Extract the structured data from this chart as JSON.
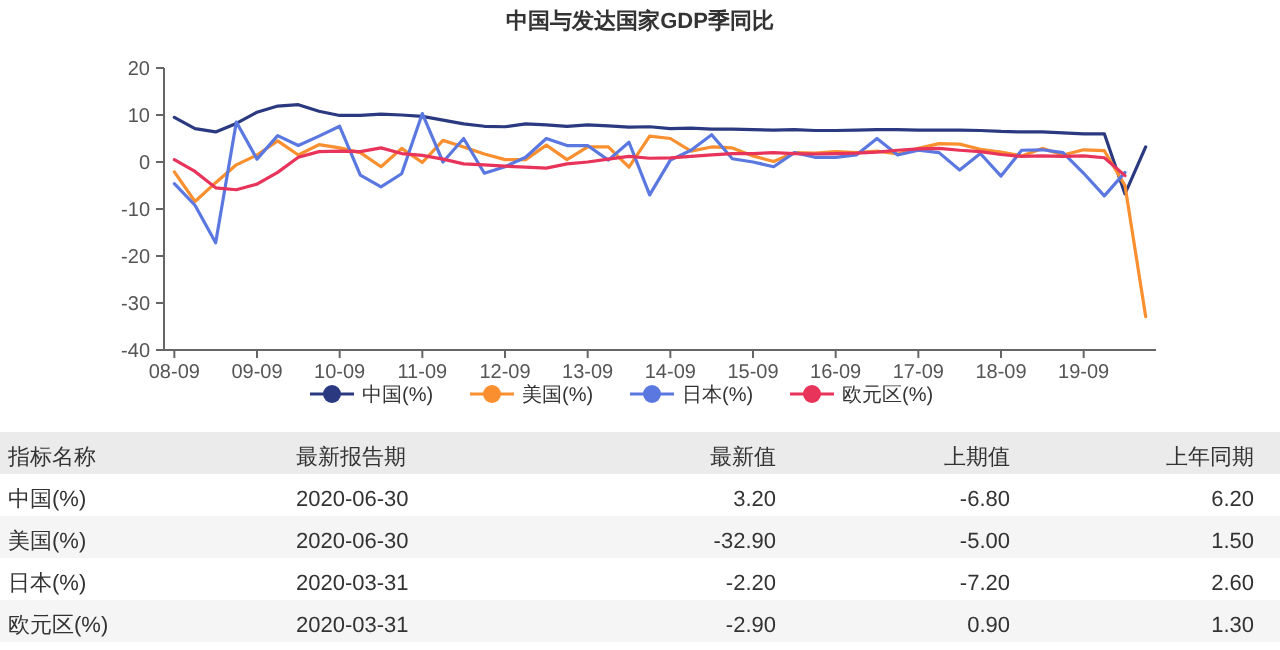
{
  "chart_data": {
    "type": "line",
    "title": "中国与发达国家GDP季同比",
    "categories": [
      "08-09",
      null,
      null,
      null,
      "09-09",
      null,
      null,
      null,
      "10-09",
      null,
      null,
      null,
      "11-09",
      null,
      null,
      null,
      "12-09",
      null,
      null,
      null,
      "13-09",
      null,
      null,
      null,
      "14-09",
      null,
      null,
      null,
      "15-09",
      null,
      null,
      null,
      "16-09",
      null,
      null,
      null,
      "17-09",
      null,
      null,
      null,
      "18-09",
      null,
      null,
      null,
      "19-09",
      null,
      null,
      null
    ],
    "ylim": [
      -40,
      20
    ],
    "yticks": [
      -40,
      -30,
      -20,
      -10,
      0,
      10,
      20
    ],
    "grid": false,
    "legend": "bottom",
    "marker": "none",
    "line_style": "solid",
    "series": [
      {
        "name": "中国(%)",
        "color": "#2b3a80",
        "values": [
          9.5,
          7.1,
          6.4,
          8.2,
          10.6,
          11.9,
          12.2,
          10.8,
          9.9,
          9.9,
          10.2,
          10.0,
          9.7,
          8.9,
          8.1,
          7.6,
          7.5,
          8.1,
          7.9,
          7.6,
          7.9,
          7.7,
          7.4,
          7.5,
          7.1,
          7.2,
          7.0,
          7.0,
          6.9,
          6.8,
          6.9,
          6.7,
          6.7,
          6.8,
          6.9,
          6.9,
          6.8,
          6.8,
          6.8,
          6.7,
          6.5,
          6.4,
          6.4,
          6.2,
          6.0,
          6.0,
          -6.8,
          3.2
        ]
      },
      {
        "name": "美国(%)",
        "color": "#f98f2e",
        "values": [
          -2.1,
          -8.4,
          -4.4,
          -0.6,
          1.5,
          4.5,
          1.5,
          3.7,
          3.0,
          2.0,
          -1.0,
          2.9,
          -0.1,
          4.6,
          3.2,
          1.7,
          0.5,
          0.5,
          3.6,
          0.5,
          3.2,
          3.2,
          -1.1,
          5.5,
          5.0,
          2.3,
          3.2,
          3.0,
          1.3,
          0.1,
          2.0,
          1.9,
          2.2,
          2.0,
          2.3,
          1.7,
          2.9,
          3.9,
          3.8,
          2.7,
          2.1,
          1.3,
          2.9,
          1.5,
          2.6,
          2.4,
          -5.0,
          -32.9
        ]
      },
      {
        "name": "日本(%)",
        "color": "#5a78e0",
        "values": [
          -4.6,
          -9.2,
          -17.2,
          8.5,
          0.6,
          5.6,
          3.5,
          5.5,
          7.6,
          -2.8,
          -5.3,
          -2.5,
          10.3,
          0.0,
          5.0,
          -2.4,
          -1.0,
          1.0,
          5.0,
          3.5,
          3.5,
          0.4,
          4.2,
          -7.0,
          0.4,
          2.5,
          5.8,
          0.7,
          0.0,
          -1.0,
          2.0,
          1.0,
          1.0,
          1.5,
          5.0,
          1.5,
          2.5,
          2.0,
          -1.7,
          1.8,
          -3.0,
          2.5,
          2.6,
          2.0,
          -2.4,
          -7.2,
          -2.2,
          null
        ]
      },
      {
        "name": "欧元区(%)",
        "color": "#e8335a",
        "values": [
          0.5,
          -2.0,
          -5.5,
          -5.9,
          -4.7,
          -2.2,
          1.0,
          2.2,
          2.3,
          2.2,
          3.0,
          1.8,
          1.4,
          0.6,
          -0.4,
          -0.6,
          -0.9,
          -1.1,
          -1.3,
          -0.4,
          0.0,
          0.6,
          1.2,
          0.8,
          0.9,
          1.2,
          1.5,
          1.8,
          1.8,
          2.0,
          1.8,
          1.7,
          1.8,
          1.9,
          2.1,
          2.5,
          2.8,
          2.9,
          2.5,
          2.2,
          1.6,
          1.2,
          1.3,
          1.2,
          1.3,
          0.9,
          -2.9,
          null
        ]
      }
    ],
    "annotations": [
      "指标名称",
      "最新报告期",
      "最新值",
      "上期值",
      "上年同期",
      "中国(%)",
      "2020-06-30",
      "3.20",
      "-6.80",
      "6.20",
      "美国(%)",
      "2020-06-30",
      "-32.90",
      "-5.00",
      "1.50",
      "日本(%)",
      "2020-03-31",
      "-2.20",
      "-7.20",
      "2.60",
      "欧元区(%)",
      "2020-03-31",
      "-2.90",
      "0.90",
      "1.30"
    ]
  }
}
